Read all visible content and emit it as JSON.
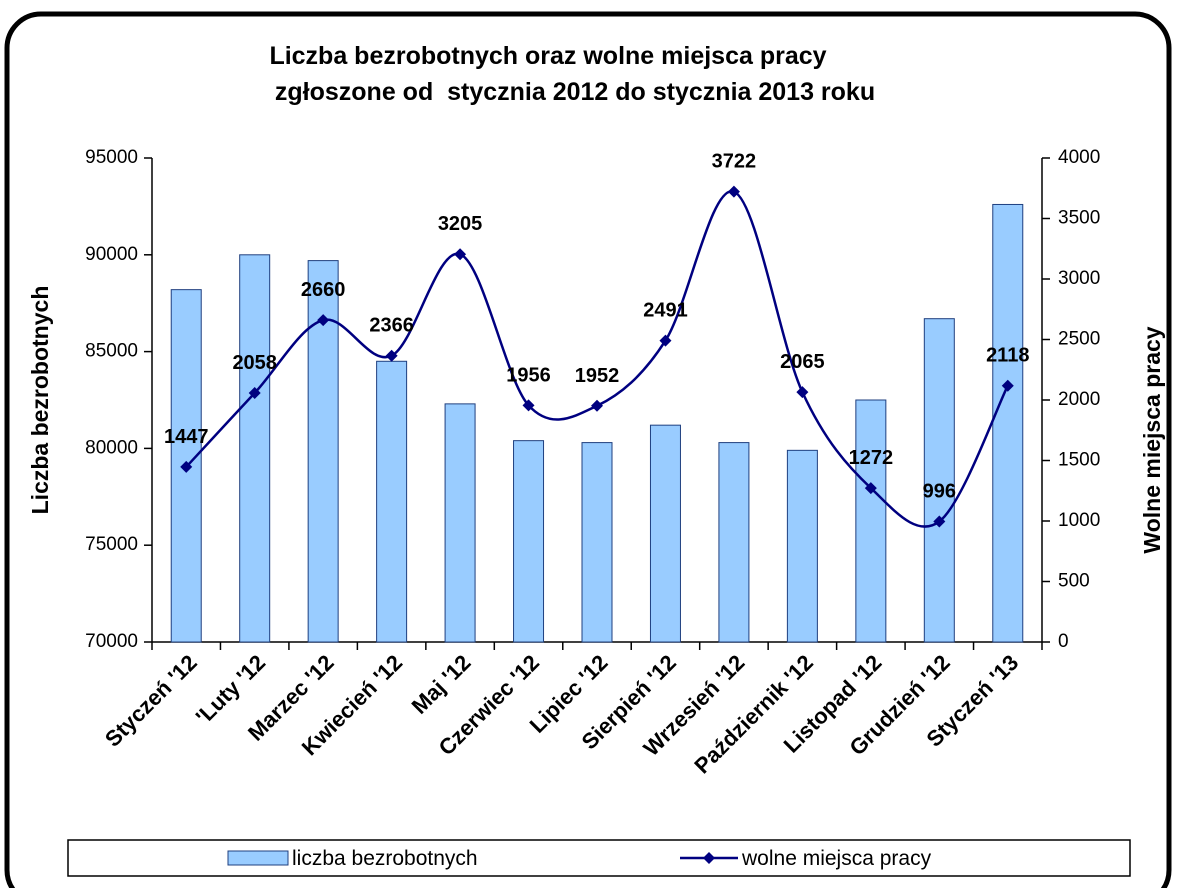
{
  "chart_data": {
    "type": "bar-line",
    "title": [
      "Liczba bezrobotnych oraz wolne miejsca pracy",
      "zgłoszone od  stycznia 2012 do stycznia 2013 roku"
    ],
    "y_label": "Liczba bezrobotnych",
    "y2_label": "Wolne miejsca pracy",
    "categories": [
      "Styczeń '12",
      "'Luty '12",
      "Marzec '12",
      "Kwiecień '12",
      "Maj '12",
      "Czerwiec '12",
      "Lipiec '12",
      "Sierpień '12",
      "Wrzesień '12",
      "Październik '12",
      "Listopad '12",
      "Grudzień '12",
      "Styczeń '13"
    ],
    "series": [
      {
        "name": "liczba bezrobotnych",
        "type": "bar",
        "color": "#99ccff",
        "values": [
          88200,
          90000,
          89700,
          84500,
          82300,
          80400,
          80300,
          81200,
          80300,
          79900,
          82500,
          86700,
          92600
        ]
      },
      {
        "name": "wolne miejsca pracy",
        "type": "line",
        "axis": "y2",
        "color": "#000080",
        "values": [
          1447,
          2058,
          2660,
          2366,
          3205,
          1956,
          1952,
          2491,
          3722,
          2065,
          1272,
          996,
          2118
        ]
      }
    ],
    "ylim": [
      70000,
      95000
    ],
    "yticks": [
      70000,
      75000,
      80000,
      85000,
      90000,
      95000
    ],
    "y2lim": [
      0,
      4000
    ],
    "y2ticks": [
      0,
      500,
      1000,
      1500,
      2000,
      2500,
      3000,
      3500,
      4000
    ],
    "legend": "bottom"
  }
}
